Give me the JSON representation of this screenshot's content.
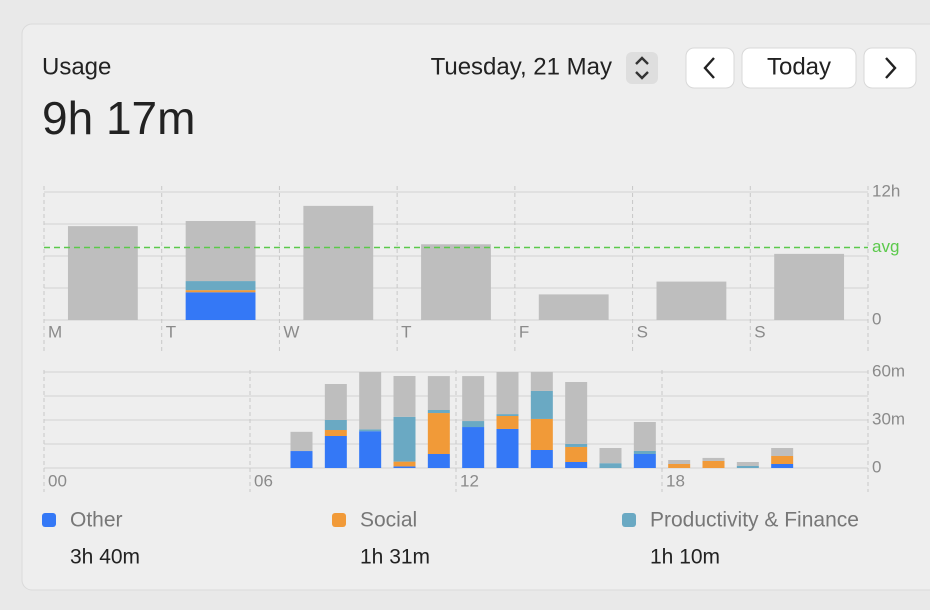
{
  "header": {
    "title": "Usage",
    "total": "9h 17m"
  },
  "date_picker": {
    "date": "Tuesday, 21 May"
  },
  "nav": {
    "today": "Today"
  },
  "weekly_chart": {
    "type": "bar",
    "stacked": true,
    "grid": true,
    "categories": [
      "M",
      "T",
      "W",
      "T",
      "F",
      "S",
      "S"
    ],
    "series": [
      {
        "name": "Other",
        "color": "#3478f6",
        "values": [
          0,
          2.6,
          0,
          0,
          0,
          0,
          0
        ]
      },
      {
        "name": "Social",
        "color": "#f19a38",
        "values": [
          0,
          0.2,
          0,
          0,
          0,
          0,
          0
        ]
      },
      {
        "name": "Productivity & Finance",
        "color": "#6aa9c3",
        "values": [
          0,
          0.85,
          0,
          0,
          0,
          0,
          0
        ]
      },
      {
        "color": "#bebebe",
        "values": [
          8.8,
          5.63,
          10.7,
          7.1,
          2.4,
          3.6,
          6.2
        ]
      }
    ],
    "ylim": [
      0,
      12
    ],
    "yticks": [
      0,
      {
        "value": 12,
        "label": "12h"
      }
    ],
    "minor_yticks": [
      3,
      6,
      9
    ],
    "avg": {
      "value": 6.8,
      "label": "avg",
      "color": "#5bc94b"
    }
  },
  "hourly_chart": {
    "type": "bar",
    "stacked": true,
    "grid": true,
    "categories": [
      "00",
      null,
      null,
      null,
      null,
      null,
      "06",
      null,
      null,
      null,
      null,
      null,
      "12",
      null,
      null,
      null,
      null,
      null,
      "18",
      null,
      null,
      null,
      null,
      null
    ],
    "series": [
      {
        "color": "#3478f6",
        "values": [
          0,
          0,
          0,
          0,
          0,
          0,
          0,
          10.6,
          20,
          23,
          1,
          8.75,
          25.6,
          24.4,
          11.25,
          3.75,
          0,
          8.75,
          0,
          0,
          0,
          2.5,
          0,
          0
        ]
      },
      {
        "color": "#f19a38",
        "values": [
          0,
          0,
          0,
          0,
          0,
          0,
          0,
          0,
          3.75,
          0,
          3,
          25.6,
          0,
          8.1,
          19.4,
          9.4,
          0,
          0,
          2.5,
          4.4,
          0,
          5,
          0,
          0
        ]
      },
      {
        "color": "#6aa9c3",
        "values": [
          0,
          0,
          0,
          0,
          0,
          0,
          0,
          0,
          6.25,
          1.2,
          28,
          1.9,
          3.75,
          1.2,
          17.5,
          1.9,
          3,
          1.9,
          0,
          0,
          1.25,
          0,
          0,
          0
        ]
      },
      {
        "color": "#bebebe",
        "values": [
          0,
          0,
          0,
          0,
          0,
          0,
          0,
          12,
          22.5,
          35.8,
          25.5,
          21.2,
          28.1,
          26.3,
          11.9,
          38.7,
          9.5,
          18.1,
          2.5,
          1.9,
          2.5,
          5,
          0,
          0
        ]
      }
    ],
    "ylim": [
      0,
      60
    ],
    "yticks": [
      0,
      {
        "value": 30,
        "label": "30m"
      },
      {
        "value": 60,
        "label": "60m"
      }
    ],
    "minor_yticks": [
      15,
      45
    ]
  },
  "legend": {
    "totals": [
      "3h 40m",
      "1h 31m",
      "1h 10m"
    ]
  }
}
